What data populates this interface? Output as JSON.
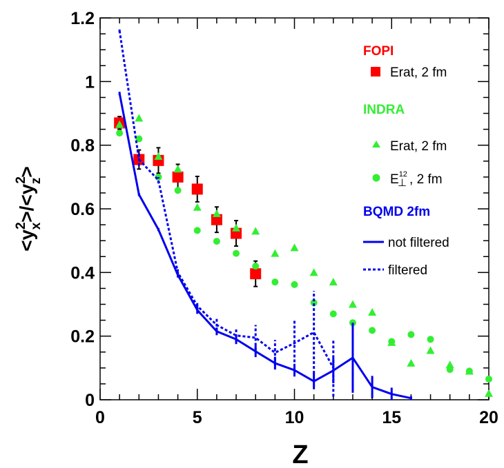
{
  "chart_data": {
    "type": "scatter",
    "xlabel": "Z",
    "ylabel": {
      "prefix": "<y",
      "sub1": "x",
      "sup1": "2",
      "mid": ">/<y",
      "sub2": "z",
      "sup2": "2",
      "suffix": ">"
    },
    "xlim": [
      0,
      20
    ],
    "ylim": [
      0,
      1.2
    ],
    "xticks": [
      0,
      5,
      10,
      15,
      20
    ],
    "xtick_labels": [
      "0",
      "5",
      "10",
      "15",
      "20"
    ],
    "yticks": [
      0,
      0.2,
      0.4,
      0.6,
      0.8,
      1.0,
      1.2
    ],
    "ytick_labels": [
      "0",
      "0.2",
      "0.4",
      "0.6",
      "0.8",
      "1",
      "1.2"
    ],
    "grid": false,
    "legend_position": "top-right",
    "legend_groups": {
      "fopi": {
        "title": "FOPI",
        "color": "#ff0000"
      },
      "indra": {
        "title": "INDRA",
        "color": "#33ee33"
      },
      "bqmd": {
        "title": "BQMD 2fm",
        "color": "#0000ee"
      }
    },
    "series": [
      {
        "name": "Erat, 2 fm",
        "group": "fopi",
        "marker": "square",
        "color": "#ff0000",
        "x": [
          1,
          2,
          3,
          4,
          5,
          6,
          7,
          8
        ],
        "y": [
          0.87,
          0.755,
          0.752,
          0.7,
          0.662,
          0.566,
          0.523,
          0.396
        ],
        "yerr": [
          0.02,
          0.03,
          0.04,
          0.04,
          0.04,
          0.04,
          0.04,
          0.04
        ]
      },
      {
        "name": "Erat, 2 fm",
        "group": "indra",
        "marker": "triangle",
        "color": "#33ee33",
        "x": [
          1,
          2,
          3,
          4,
          5,
          6,
          7,
          8,
          9,
          10,
          11,
          12,
          13,
          14,
          15,
          16,
          17,
          18,
          19,
          20
        ],
        "y": [
          0.865,
          0.885,
          0.765,
          0.725,
          0.605,
          0.585,
          0.54,
          0.53,
          0.46,
          0.478,
          0.4,
          0.37,
          0.3,
          0.275,
          0.18,
          0.115,
          0.155,
          0.11,
          0.09,
          0.02
        ]
      },
      {
        "name_parts": {
          "base": "E",
          "sub": "⊥",
          "sup": "12",
          "tail": ", 2 fm"
        },
        "group": "indra",
        "marker": "circle",
        "color": "#33ee33",
        "x": [
          1,
          2,
          3,
          4,
          5,
          6,
          7,
          8,
          9,
          10,
          11,
          12,
          13,
          14,
          15,
          16,
          17,
          18,
          19,
          20
        ],
        "y": [
          0.838,
          0.82,
          0.7,
          0.658,
          0.532,
          0.498,
          0.46,
          0.42,
          0.37,
          0.362,
          0.305,
          0.27,
          0.242,
          0.218,
          0.183,
          0.205,
          0.19,
          0.095,
          0.09,
          0.065
        ]
      },
      {
        "name": "not filtered",
        "group": "bqmd",
        "marker": "line-solid",
        "color": "#0000ee",
        "x": [
          1,
          2,
          3,
          4,
          5,
          6,
          7,
          8,
          9,
          10,
          11,
          12,
          13,
          14,
          15,
          16
        ],
        "y": [
          0.963,
          0.645,
          0.535,
          0.392,
          0.282,
          0.215,
          0.19,
          0.152,
          0.115,
          0.093,
          0.058,
          0.092,
          0.132,
          0.04,
          0.018,
          0.005
        ],
        "yerr": [
          0.005,
          0.005,
          0.005,
          0.008,
          0.012,
          0.012,
          0.015,
          0.018,
          0.02,
          0.02,
          0.025,
          0.04,
          0.11,
          0.035,
          0.02,
          0.006
        ]
      },
      {
        "name": "filtered",
        "group": "bqmd",
        "marker": "line-dotted",
        "color": "#0000ee",
        "x": [
          1,
          2,
          3,
          4,
          5,
          6,
          7,
          8,
          9,
          10,
          11,
          12
        ],
        "y": [
          1.16,
          0.755,
          0.69,
          0.4,
          0.295,
          0.235,
          0.202,
          0.195,
          0.148,
          0.178,
          0.212,
          0.1
        ],
        "yerr": [
          0.005,
          0.02,
          0.01,
          0.01,
          0.015,
          0.02,
          0.02,
          0.04,
          0.04,
          0.075,
          0.13,
          0.09
        ]
      }
    ]
  }
}
